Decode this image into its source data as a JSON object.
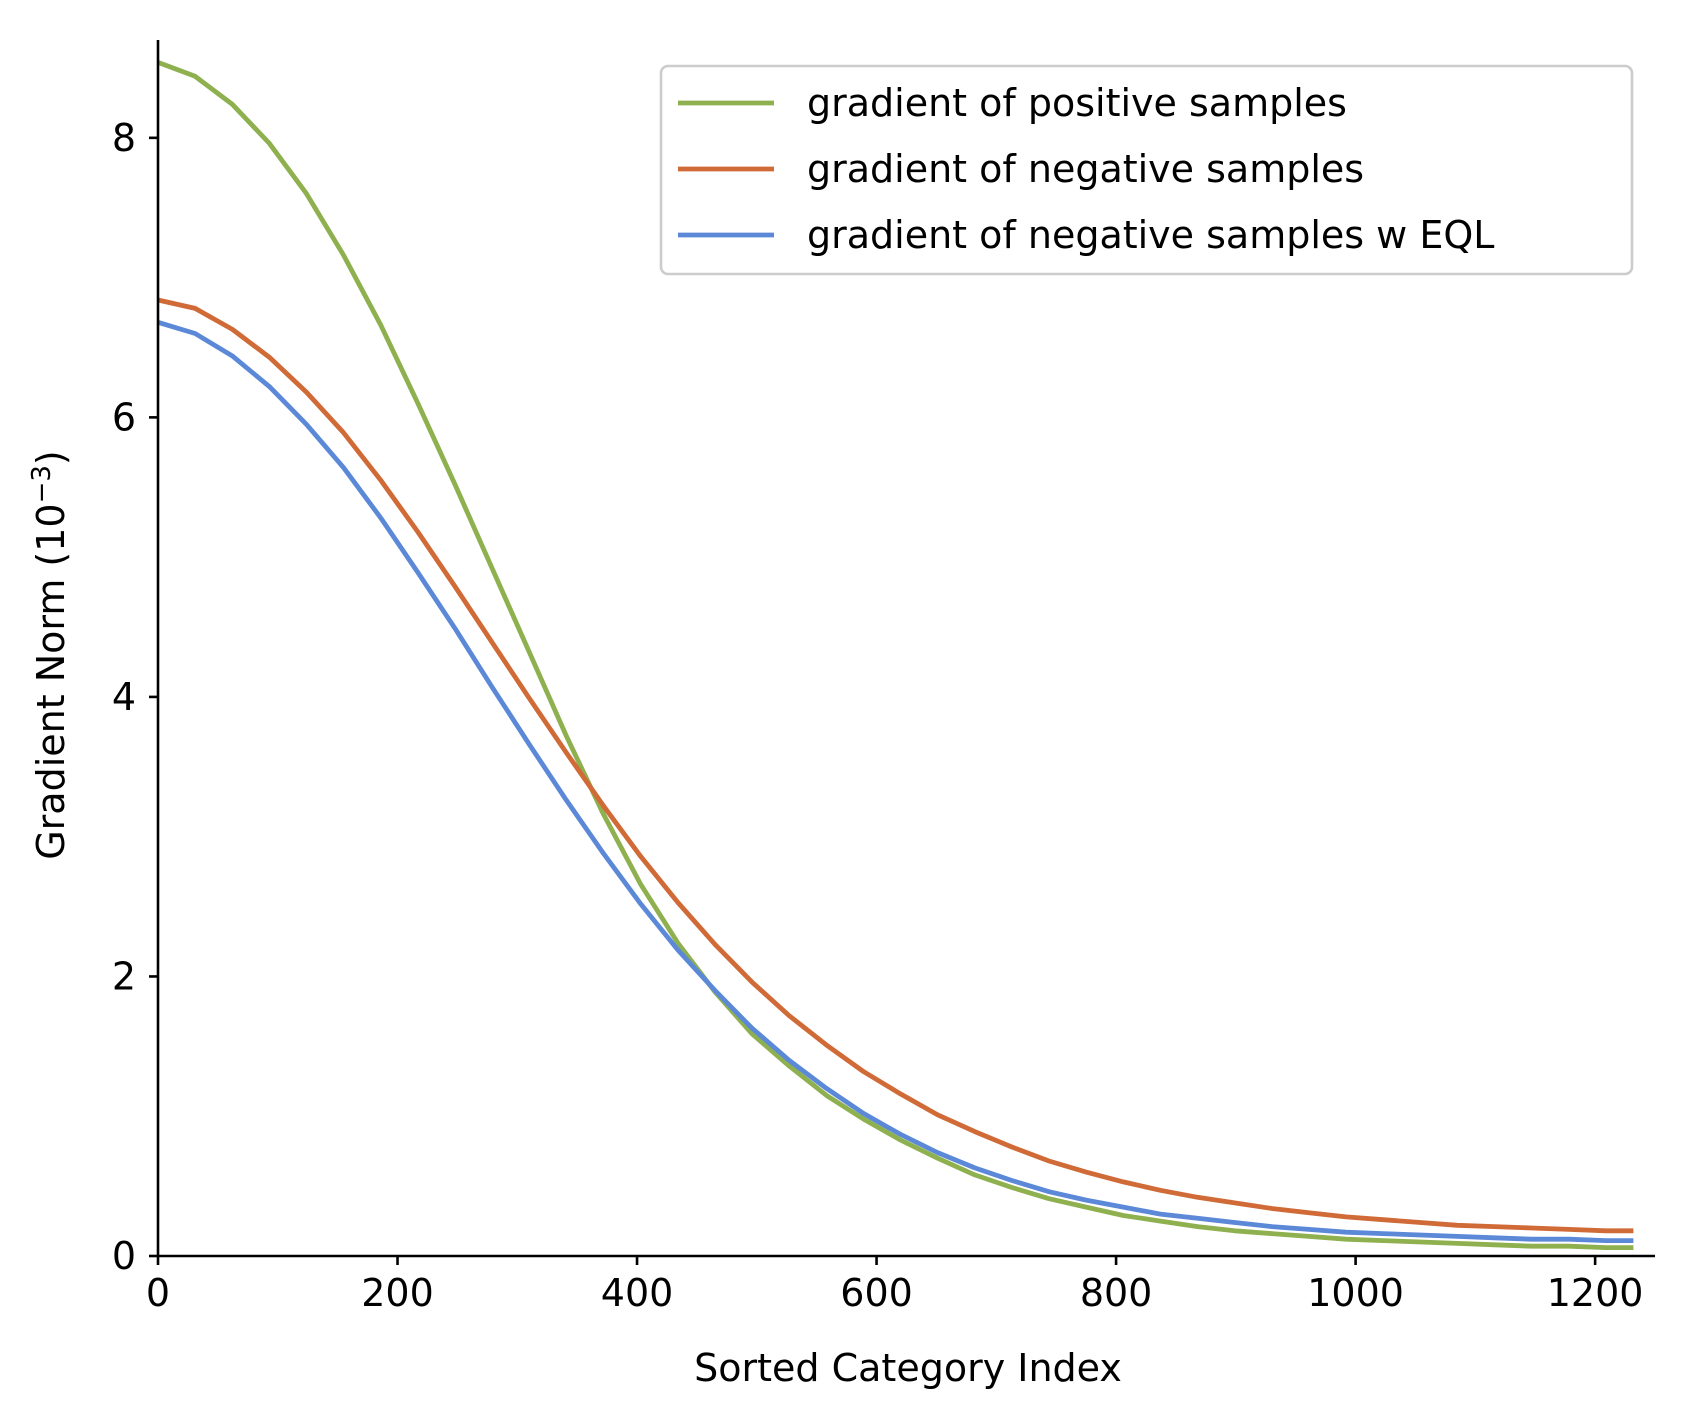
{
  "chart_data": {
    "type": "line",
    "title": "",
    "xlabel": "Sorted Category Index",
    "ylabel_main": "Gradient Norm (10",
    "ylabel_exp": "−3",
    "ylabel_close": ")",
    "xlim": [
      0,
      1250
    ],
    "ylim": [
      0,
      8.7
    ],
    "xticks": [
      0,
      200,
      400,
      600,
      800,
      1000,
      1200
    ],
    "xtick_labels": [
      "0",
      "200",
      "400",
      "600",
      "800",
      "1000",
      "1200"
    ],
    "yticks": [
      0,
      2,
      4,
      6,
      8
    ],
    "ytick_labels": [
      "0",
      "2",
      "4",
      "6",
      "8"
    ],
    "grid": false,
    "legend_position": "top-right",
    "x": [
      0,
      31,
      62,
      93,
      124,
      155,
      186,
      217,
      248,
      279,
      310,
      341,
      372,
      403,
      434,
      465,
      496,
      527,
      558,
      589,
      620,
      651,
      682,
      713,
      744,
      775,
      806,
      837,
      868,
      899,
      930,
      961,
      992,
      1023,
      1054,
      1085,
      1116,
      1147,
      1178,
      1209,
      1232
    ],
    "series": [
      {
        "name": "gradient of positive samples",
        "color": "#8fb04f",
        "values": [
          8.54,
          8.44,
          8.24,
          7.96,
          7.6,
          7.16,
          6.66,
          6.1,
          5.52,
          4.92,
          4.32,
          3.72,
          3.16,
          2.66,
          2.24,
          1.89,
          1.59,
          1.36,
          1.15,
          0.98,
          0.83,
          0.7,
          0.58,
          0.49,
          0.41,
          0.35,
          0.29,
          0.25,
          0.21,
          0.18,
          0.16,
          0.14,
          0.12,
          0.11,
          0.1,
          0.09,
          0.08,
          0.07,
          0.07,
          0.06,
          0.06
        ]
      },
      {
        "name": "gradient of negative samples",
        "color": "#d06a36",
        "values": [
          6.84,
          6.78,
          6.63,
          6.43,
          6.18,
          5.89,
          5.55,
          5.18,
          4.79,
          4.39,
          3.99,
          3.6,
          3.22,
          2.86,
          2.53,
          2.23,
          1.96,
          1.72,
          1.51,
          1.32,
          1.16,
          1.01,
          0.89,
          0.78,
          0.68,
          0.6,
          0.53,
          0.47,
          0.42,
          0.38,
          0.34,
          0.31,
          0.28,
          0.26,
          0.24,
          0.22,
          0.21,
          0.2,
          0.19,
          0.18,
          0.18
        ]
      },
      {
        "name": "gradient of negative samples w EQL",
        "color": "#5b89d8",
        "values": [
          6.68,
          6.6,
          6.44,
          6.22,
          5.95,
          5.64,
          5.28,
          4.89,
          4.49,
          4.07,
          3.66,
          3.26,
          2.88,
          2.52,
          2.19,
          1.9,
          1.63,
          1.4,
          1.2,
          1.02,
          0.87,
          0.74,
          0.63,
          0.54,
          0.46,
          0.4,
          0.35,
          0.3,
          0.27,
          0.24,
          0.21,
          0.19,
          0.17,
          0.16,
          0.15,
          0.14,
          0.13,
          0.12,
          0.12,
          0.11,
          0.11
        ]
      }
    ]
  }
}
